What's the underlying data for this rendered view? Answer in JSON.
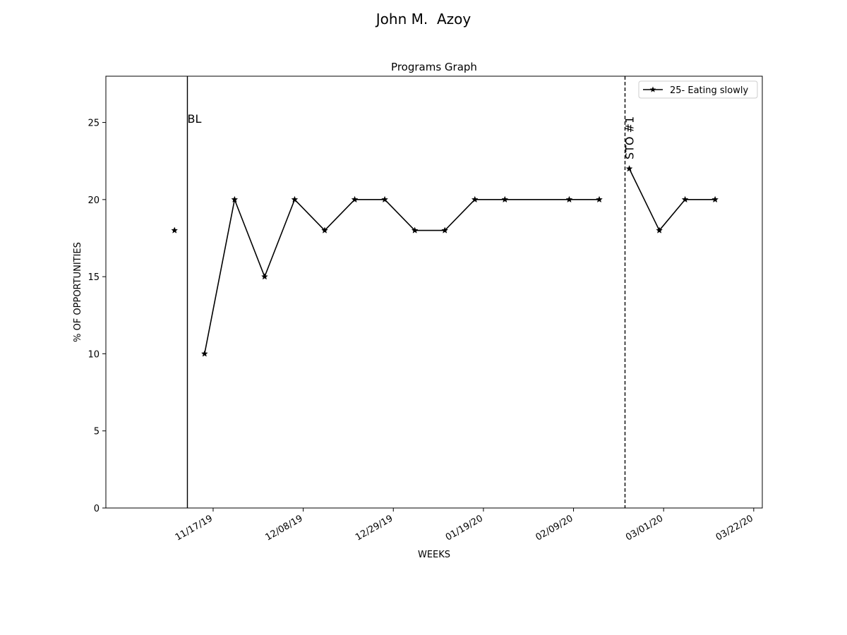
{
  "figure_title": "John M.  Azoy",
  "chart_data": {
    "type": "line",
    "title": "Programs Graph",
    "xlabel": "WEEKS",
    "ylabel": "% OF OPPORTUNITIES",
    "x_axis": "date",
    "xlim": [
      "2019-10-23",
      "2020-03-24"
    ],
    "ylim": [
      0,
      28
    ],
    "y_ticks": [
      0,
      5,
      10,
      15,
      20,
      25
    ],
    "x_ticks": [
      {
        "date": "2019-11-17",
        "label": "11/17/19"
      },
      {
        "date": "2019-12-08",
        "label": "12/08/19"
      },
      {
        "date": "2019-12-29",
        "label": "12/29/19"
      },
      {
        "date": "2020-01-19",
        "label": "01/19/20"
      },
      {
        "date": "2020-02-09",
        "label": "02/09/20"
      },
      {
        "date": "2020-03-01",
        "label": "03/01/20"
      },
      {
        "date": "2020-03-22",
        "label": "03/22/20"
      }
    ],
    "grid": false,
    "legend_position": "top-right",
    "series": [
      {
        "name": "25- Eating slowly",
        "color": "#000000",
        "marker": "star",
        "segments": [
          [
            {
              "x": "2019-11-08",
              "y": 18
            }
          ],
          [
            {
              "x": "2019-11-15",
              "y": 10
            },
            {
              "x": "2019-11-22",
              "y": 20
            },
            {
              "x": "2019-11-29",
              "y": 15
            },
            {
              "x": "2019-12-06",
              "y": 20
            },
            {
              "x": "2019-12-13",
              "y": 18
            },
            {
              "x": "2019-12-20",
              "y": 20
            },
            {
              "x": "2019-12-27",
              "y": 20
            },
            {
              "x": "2020-01-03",
              "y": 18
            },
            {
              "x": "2020-01-10",
              "y": 18
            },
            {
              "x": "2020-01-17",
              "y": 20
            },
            {
              "x": "2020-01-24",
              "y": 20
            },
            {
              "x": "2020-02-08",
              "y": 20
            },
            {
              "x": "2020-02-15",
              "y": 20
            }
          ],
          [
            {
              "x": "2020-02-22",
              "y": 22
            },
            {
              "x": "2020-02-29",
              "y": 18
            },
            {
              "x": "2020-03-06",
              "y": 20
            },
            {
              "x": "2020-03-13",
              "y": 20
            }
          ]
        ]
      }
    ],
    "phase_lines": [
      {
        "x": "2019-11-11",
        "label": "BL",
        "style": "solid",
        "label_rotation": "horizontal"
      },
      {
        "x": "2020-02-21",
        "label": "STO #1",
        "style": "dashed",
        "label_rotation": "vertical"
      }
    ]
  }
}
